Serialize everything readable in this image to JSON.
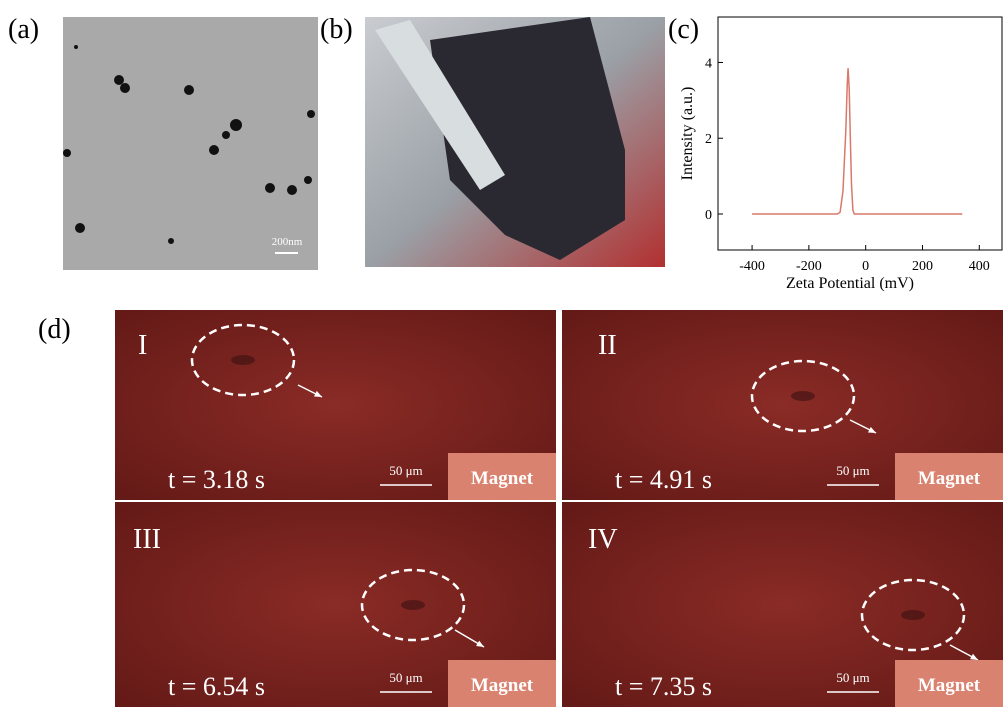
{
  "panel_labels": [
    "(a)",
    "(b)",
    "(c)",
    "(d)"
  ],
  "tem_scale": "200nm",
  "chart_data": {
    "type": "line",
    "x": [
      -400,
      -100,
      -90,
      -80,
      -70,
      -65,
      -62,
      -58,
      -54,
      -50,
      -45,
      -40,
      340
    ],
    "values": [
      0,
      0,
      0.05,
      0.6,
      2.2,
      3.4,
      3.85,
      3.3,
      2.0,
      0.8,
      0.1,
      0,
      0
    ],
    "color": "#d9786b",
    "xlim": [
      -520,
      480
    ],
    "ylim": [
      -0.95,
      5.2
    ],
    "xticks": [
      -400,
      -200,
      0,
      200,
      400
    ],
    "yticks": [
      0,
      2,
      4
    ],
    "x_label": "Zeta Potential (mV)",
    "y_label": "Intensity (a.u.)"
  },
  "frames": [
    {
      "label": "I",
      "time": "t = 3.18 s",
      "scale": "50 μm",
      "magnet": "Magnet"
    },
    {
      "label": "II",
      "time": "t = 4.91 s",
      "scale": "50 μm",
      "magnet": "Magnet"
    },
    {
      "label": "III",
      "time": "t = 6.54 s",
      "scale": "50 μm",
      "magnet": "Magnet"
    },
    {
      "label": "IV",
      "time": "t = 7.35 s",
      "scale": "50 μm",
      "magnet": "Magnet"
    }
  ]
}
